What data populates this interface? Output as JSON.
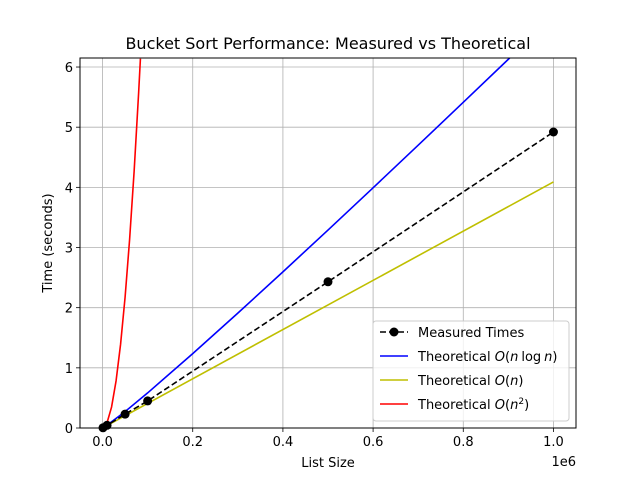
{
  "chart_data": {
    "type": "line",
    "title": "Bucket Sort Performance: Measured vs Theoretical",
    "xlabel": "List Size",
    "ylabel": "Time (seconds)",
    "x_offset_label": "1e6",
    "xlim": [
      -50000,
      1050000
    ],
    "ylim": [
      0,
      6.15
    ],
    "x_ticks": [
      0,
      200000,
      400000,
      600000,
      800000,
      1000000
    ],
    "x_tick_labels": [
      "0.0",
      "0.2",
      "0.4",
      "0.6",
      "0.8",
      "1.0"
    ],
    "y_ticks": [
      0,
      1,
      2,
      3,
      4,
      5,
      6
    ],
    "y_tick_labels": [
      "0",
      "1",
      "2",
      "3",
      "4",
      "5",
      "6"
    ],
    "grid": true,
    "legend_position": "bottom-right",
    "series": [
      {
        "name": "Measured Times",
        "legend_text": "Measured Times",
        "style": "dashed-markers",
        "color": "#000000",
        "x": [
          1000,
          10000,
          50000,
          100000,
          500000,
          1000000
        ],
        "y": [
          0.004,
          0.045,
          0.23,
          0.45,
          2.43,
          4.92
        ]
      },
      {
        "name": "Theoretical O(n log n)",
        "legend_text": [
          "Theoretical ",
          "O",
          "(",
          "n",
          "log",
          "n",
          ")"
        ],
        "style": "solid",
        "color": "#0000ff",
        "model": "nlogn",
        "x": [
          1000,
          10000,
          50000,
          100000,
          200000,
          300000,
          400000,
          500000,
          600000,
          700000,
          800000,
          900000,
          940000
        ],
        "y": [
          0.0035,
          0.0466,
          0.2729,
          0.5831,
          1.2364,
          1.9094,
          2.5954,
          3.2904,
          3.9924,
          4.7004,
          5.4128,
          6.1291,
          6.4164
        ]
      },
      {
        "name": "Theoretical O(n)",
        "legend_text": [
          "Theoretical ",
          "O",
          "(",
          "n",
          ")"
        ],
        "style": "solid",
        "color": "#bfbf00",
        "x": [
          1000,
          1000000
        ],
        "y": [
          0.0041,
          4.09
        ]
      },
      {
        "name": "Theoretical O(n^2)",
        "legend_text": [
          "Theoretical ",
          "O",
          "(",
          "n",
          "2",
          ")"
        ],
        "style": "solid",
        "color": "#ff0000",
        "x": [
          1000,
          10000,
          20000,
          30000,
          40000,
          50000,
          60000,
          70000,
          80000,
          84000
        ],
        "y": [
          0.0009,
          0.087,
          0.348,
          0.783,
          1.392,
          2.175,
          3.132,
          4.263,
          5.568,
          6.139
        ]
      }
    ]
  }
}
